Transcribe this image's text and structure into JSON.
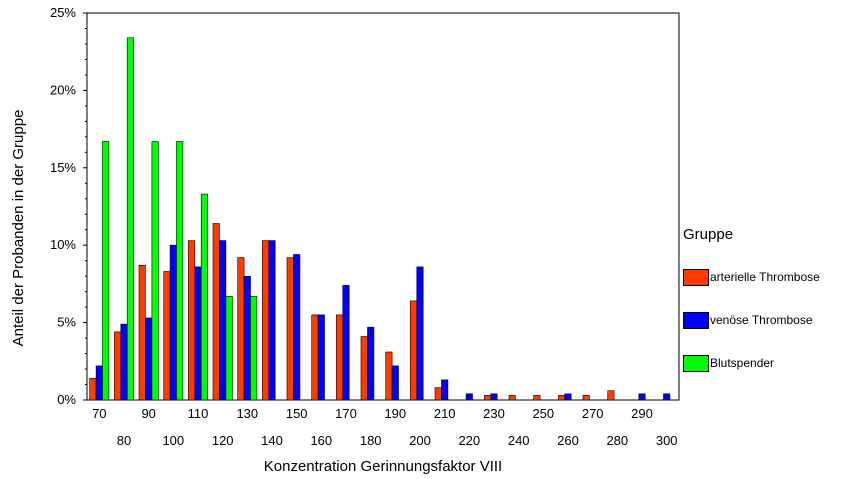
{
  "chart_data": {
    "type": "bar",
    "xlabel": "Konzentration Gerinnungsfaktor VIII",
    "ylabel": "Anteil der Probanden in der Gruppe",
    "ylim": [
      0,
      25
    ],
    "yticks": [
      "0%",
      "5%",
      "10%",
      "15%",
      "20%",
      "25%"
    ],
    "grid": false,
    "legend_placement": "right",
    "legend_title": "Gruppe",
    "categories": [
      "70",
      "80",
      "90",
      "100",
      "110",
      "120",
      "130",
      "140",
      "150",
      "160",
      "170",
      "180",
      "190",
      "200",
      "210",
      "220",
      "230",
      "240",
      "250",
      "260",
      "270",
      "280",
      "290",
      "300"
    ],
    "series": [
      {
        "name": "arterielle Thrombose",
        "color": "#ff3b00",
        "values": [
          1.4,
          4.4,
          8.7,
          8.3,
          10.3,
          11.4,
          9.2,
          10.3,
          9.2,
          5.5,
          5.5,
          4.1,
          3.1,
          6.4,
          0.8,
          0,
          0.3,
          0.3,
          0.3,
          0.3,
          0.3,
          0.6,
          0,
          0
        ]
      },
      {
        "name": "venöse Thrombose",
        "color": "#0000ff",
        "values": [
          2.2,
          4.9,
          5.3,
          10.0,
          8.6,
          10.3,
          8.0,
          10.3,
          9.4,
          5.5,
          7.4,
          4.7,
          2.2,
          8.6,
          1.3,
          0.4,
          0.4,
          0,
          0,
          0.4,
          0,
          0,
          0.4,
          0.4
        ]
      },
      {
        "name": "Blutspender",
        "color": "#00ff00",
        "values": [
          16.7,
          23.4,
          16.7,
          16.7,
          13.3,
          6.7,
          6.7,
          0,
          0,
          0,
          0,
          0,
          0,
          0,
          0,
          0,
          0,
          0,
          0,
          0,
          0,
          0,
          0,
          0
        ]
      }
    ]
  }
}
